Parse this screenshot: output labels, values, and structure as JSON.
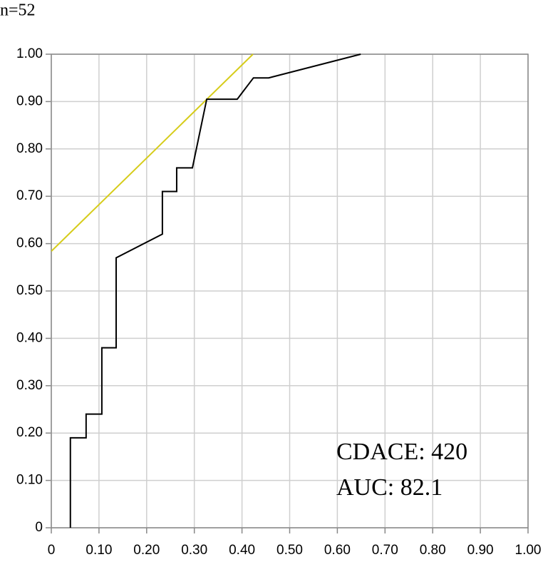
{
  "chart_data": {
    "type": "line",
    "title": "n=52",
    "annotations": [
      "CDACE: 420",
      "AUC: 82.1"
    ],
    "xlim": [
      0,
      1
    ],
    "ylim": [
      0,
      1
    ],
    "xticks": [
      0,
      {
        "value": 0.1,
        "label": "0.10"
      },
      {
        "value": 0.2,
        "label": "0.20"
      },
      {
        "value": 0.3,
        "label": "0.30"
      },
      {
        "value": 0.4,
        "label": "0.40"
      },
      {
        "value": 0.5,
        "label": "0.50"
      },
      {
        "value": 0.6,
        "label": "0.60"
      },
      {
        "value": 0.7,
        "label": "0.70"
      },
      {
        "value": 0.8,
        "label": "0.80"
      },
      {
        "value": 0.9,
        "label": "0.90"
      },
      {
        "value": 1,
        "label": "1.00"
      }
    ],
    "yticks": [
      0,
      {
        "value": 0.1,
        "label": "0.10"
      },
      {
        "value": 0.2,
        "label": "0.20"
      },
      {
        "value": 0.3,
        "label": "0.30"
      },
      {
        "value": 0.4,
        "label": "0.40"
      },
      {
        "value": 0.5,
        "label": "0.50"
      },
      {
        "value": 0.6,
        "label": "0.60"
      },
      {
        "value": 0.7,
        "label": "0.70"
      },
      {
        "value": 0.8,
        "label": "0.80"
      },
      {
        "value": 0.9,
        "label": "0.90"
      },
      {
        "value": 1,
        "label": "1.00"
      }
    ],
    "grid": true,
    "series": [
      {
        "color": "#d6cc1a",
        "x": [
          0,
          0.423
        ],
        "values": [
          0.584,
          1.0
        ]
      },
      {
        "color": "#000000",
        "x": [
          0.04,
          0.04,
          0.073,
          0.073,
          0.106,
          0.106,
          0.136,
          0.136,
          0.233,
          0.233,
          0.263,
          0.263,
          0.296,
          0.326,
          0.39,
          0.424,
          0.456,
          0.649
        ],
        "values": [
          0,
          0.19,
          0.19,
          0.24,
          0.24,
          0.38,
          0.38,
          0.57,
          0.62,
          0.71,
          0.71,
          0.76,
          0.76,
          0.905,
          0.905,
          0.95,
          0.95,
          1.0
        ]
      }
    ]
  }
}
